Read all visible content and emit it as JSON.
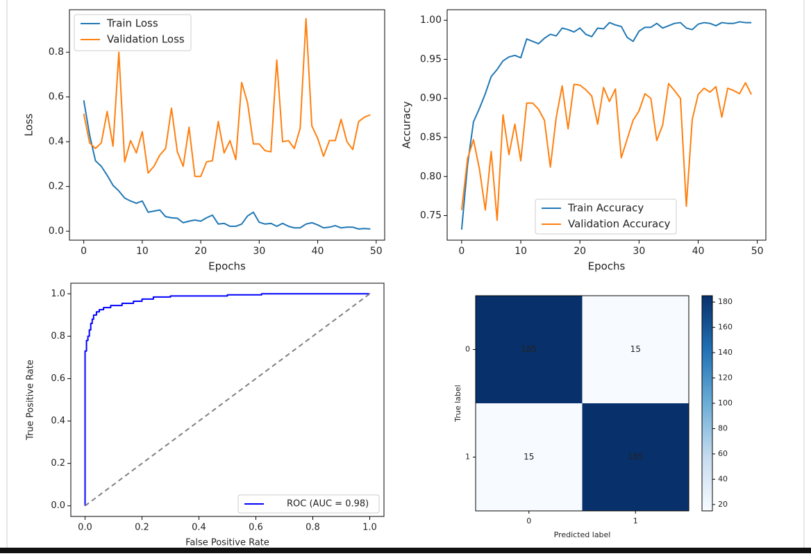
{
  "colors": {
    "train": "#1f77b4",
    "validation": "#ff7f0e",
    "roc": "#0000ff",
    "diagonal": "#808080",
    "cm_high": "#08306b",
    "cm_low": "#f7fbff"
  },
  "chart_data": [
    {
      "id": "loss",
      "type": "line",
      "xlabel": "Epochs",
      "ylabel": "Loss",
      "xlim": [
        -2.45,
        51.45
      ],
      "ylim": [
        -0.04,
        0.99
      ],
      "xticks": [
        0,
        10,
        20,
        30,
        40,
        50
      ],
      "yticks": [
        0.0,
        0.2,
        0.4,
        0.6,
        0.8
      ],
      "ytick_labels": [
        "0.0",
        "0.2",
        "0.4",
        "0.6",
        "0.8"
      ],
      "legend_position": "upper-left",
      "series": [
        {
          "name": "Train Loss",
          "color": "#1f77b4",
          "values": [
            0.585,
            0.43,
            0.315,
            0.29,
            0.25,
            0.205,
            0.18,
            0.148,
            0.135,
            0.125,
            0.135,
            0.085,
            0.09,
            0.095,
            0.065,
            0.06,
            0.058,
            0.038,
            0.045,
            0.05,
            0.045,
            0.06,
            0.072,
            0.032,
            0.035,
            0.022,
            0.022,
            0.032,
            0.068,
            0.085,
            0.04,
            0.032,
            0.035,
            0.022,
            0.035,
            0.022,
            0.015,
            0.015,
            0.032,
            0.038,
            0.028,
            0.015,
            0.018,
            0.025,
            0.015,
            0.018,
            0.018,
            0.01,
            0.012,
            0.01
          ]
        },
        {
          "name": "Validation Loss",
          "color": "#ff7f0e",
          "values": [
            0.525,
            0.395,
            0.37,
            0.395,
            0.535,
            0.38,
            0.8,
            0.31,
            0.405,
            0.35,
            0.445,
            0.26,
            0.29,
            0.34,
            0.37,
            0.55,
            0.355,
            0.29,
            0.465,
            0.245,
            0.245,
            0.31,
            0.315,
            0.49,
            0.35,
            0.405,
            0.32,
            0.665,
            0.575,
            0.39,
            0.39,
            0.36,
            0.355,
            0.765,
            0.4,
            0.405,
            0.37,
            0.46,
            0.95,
            0.47,
            0.415,
            0.335,
            0.405,
            0.405,
            0.5,
            0.4,
            0.365,
            0.49,
            0.51,
            0.52
          ]
        }
      ]
    },
    {
      "id": "accuracy",
      "type": "line",
      "xlabel": "Epochs",
      "ylabel": "Accuracy",
      "xlim": [
        -2.45,
        51.45
      ],
      "ylim": [
        0.7185,
        1.0135
      ],
      "xticks": [
        0,
        10,
        20,
        30,
        40,
        50
      ],
      "yticks": [
        0.75,
        0.8,
        0.85,
        0.9,
        0.95,
        1.0
      ],
      "ytick_labels": [
        "0.75",
        "0.80",
        "0.85",
        "0.90",
        "0.95",
        "1.00"
      ],
      "legend_position": "lower-right",
      "series": [
        {
          "name": "Train Accuracy",
          "color": "#1f77b4",
          "values": [
            0.732,
            0.815,
            0.87,
            0.887,
            0.906,
            0.928,
            0.937,
            0.948,
            0.953,
            0.955,
            0.952,
            0.976,
            0.973,
            0.97,
            0.977,
            0.982,
            0.98,
            0.99,
            0.988,
            0.985,
            0.99,
            0.982,
            0.979,
            0.99,
            0.989,
            0.997,
            0.994,
            0.992,
            0.978,
            0.973,
            0.986,
            0.991,
            0.991,
            0.996,
            0.99,
            0.993,
            0.996,
            0.997,
            0.99,
            0.988,
            0.995,
            0.997,
            0.996,
            0.993,
            0.997,
            0.996,
            0.996,
            0.998,
            0.997,
            0.997
          ]
        },
        {
          "name": "Validation Accuracy",
          "color": "#ff7f0e",
          "values": [
            0.757,
            0.823,
            0.847,
            0.81,
            0.757,
            0.832,
            0.744,
            0.879,
            0.828,
            0.867,
            0.82,
            0.894,
            0.894,
            0.886,
            0.872,
            0.812,
            0.876,
            0.916,
            0.861,
            0.918,
            0.917,
            0.911,
            0.903,
            0.867,
            0.914,
            0.896,
            0.912,
            0.824,
            0.848,
            0.872,
            0.884,
            0.906,
            0.9,
            0.846,
            0.866,
            0.919,
            0.91,
            0.9,
            0.762,
            0.873,
            0.905,
            0.913,
            0.908,
            0.915,
            0.876,
            0.913,
            0.91,
            0.906,
            0.92,
            0.905
          ]
        }
      ]
    },
    {
      "id": "roc",
      "type": "line",
      "xlabel": "False Positive Rate",
      "ylabel": "True Positive Rate",
      "xlim": [
        -0.05,
        1.05
      ],
      "ylim": [
        -0.05,
        1.05
      ],
      "xticks": [
        0.0,
        0.2,
        0.4,
        0.6,
        0.8,
        1.0
      ],
      "yticks": [
        0.0,
        0.2,
        0.4,
        0.6,
        0.8,
        1.0
      ],
      "tick_labels": [
        "0.0",
        "0.2",
        "0.4",
        "0.6",
        "0.8",
        "1.0"
      ],
      "legend_position": "lower-right",
      "series": [
        {
          "name": "ROC (AUC = 0.98)",
          "color": "#0000ff",
          "x": [
            0.0,
            0.0,
            0.005,
            0.005,
            0.01,
            0.01,
            0.015,
            0.015,
            0.02,
            0.02,
            0.025,
            0.025,
            0.03,
            0.03,
            0.04,
            0.04,
            0.05,
            0.05,
            0.065,
            0.065,
            0.09,
            0.09,
            0.13,
            0.13,
            0.17,
            0.17,
            0.2,
            0.2,
            0.24,
            0.24,
            0.3,
            0.3,
            0.5,
            0.5,
            0.62,
            0.62,
            0.77,
            0.77,
            1.0
          ],
          "y": [
            0.0,
            0.73,
            0.73,
            0.78,
            0.78,
            0.8,
            0.8,
            0.83,
            0.83,
            0.86,
            0.86,
            0.88,
            0.88,
            0.9,
            0.9,
            0.915,
            0.915,
            0.925,
            0.925,
            0.935,
            0.935,
            0.945,
            0.945,
            0.955,
            0.955,
            0.965,
            0.965,
            0.975,
            0.975,
            0.985,
            0.985,
            0.99,
            0.99,
            0.995,
            0.995,
            1.0,
            1.0,
            1.0,
            1.0
          ]
        },
        {
          "name": "",
          "color": "#808080",
          "x": [
            0,
            1
          ],
          "y": [
            0,
            1
          ]
        }
      ]
    },
    {
      "id": "confusion",
      "type": "heatmap",
      "xlabel": "Predicted label",
      "ylabel": "True label",
      "x_categories": [
        "0",
        "1"
      ],
      "y_categories": [
        "0",
        "1"
      ],
      "matrix": [
        [
          185,
          15
        ],
        [
          15,
          185
        ]
      ],
      "cell_labels": [
        [
          "185",
          "15"
        ],
        [
          "15",
          "185"
        ]
      ],
      "colorbar_range": [
        15,
        185
      ],
      "colorbar_ticks": [
        20,
        40,
        60,
        80,
        100,
        120,
        140,
        160,
        180
      ],
      "colorbar_tick_labels": [
        "20",
        "40",
        "60",
        "80",
        "100",
        "120",
        "140",
        "160",
        "180"
      ],
      "colormap": "Blues"
    }
  ]
}
